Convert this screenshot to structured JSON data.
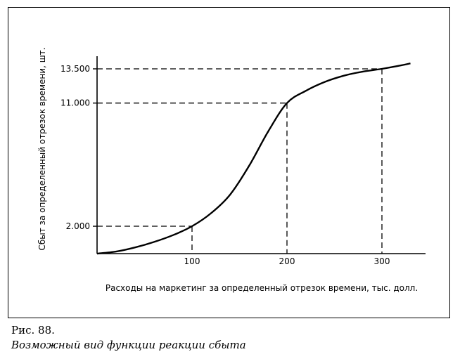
{
  "chart_data": {
    "type": "line",
    "xlabel": "Расходы на маркетинг за определенный отрезок времени, тыс. долл.",
    "ylabel": "Сбыт за определенный отрезок времени, шт.",
    "x_ticks": [
      {
        "value": 100,
        "label": "100"
      },
      {
        "value": 200,
        "label": "200"
      },
      {
        "value": 300,
        "label": "300"
      }
    ],
    "y_ticks": [
      {
        "value": 2000,
        "label": "2.000"
      },
      {
        "value": 11000,
        "label": "11.000"
      },
      {
        "value": 13500,
        "label": "13.500"
      }
    ],
    "xlim": [
      0,
      335
    ],
    "ylim": [
      0,
      15000
    ],
    "grid": false,
    "series": [
      {
        "x": [
          0,
          20,
          40,
          60,
          80,
          100,
          120,
          140,
          160,
          180,
          200,
          220,
          240,
          260,
          280,
          300,
          320,
          330
        ],
        "y": [
          0,
          150,
          450,
          850,
          1350,
          2000,
          2950,
          4300,
          6400,
          8900,
          11000,
          11900,
          12550,
          13000,
          13300,
          13500,
          13750,
          13900
        ]
      }
    ],
    "reference_lines": [
      {
        "x": 100,
        "y": 2000
      },
      {
        "x": 200,
        "y": 11000
      },
      {
        "x": 300,
        "y": 13500
      }
    ]
  },
  "figure": {
    "number": "Рис.  88.",
    "caption": "Возможный вид функции реакции сбыта"
  }
}
